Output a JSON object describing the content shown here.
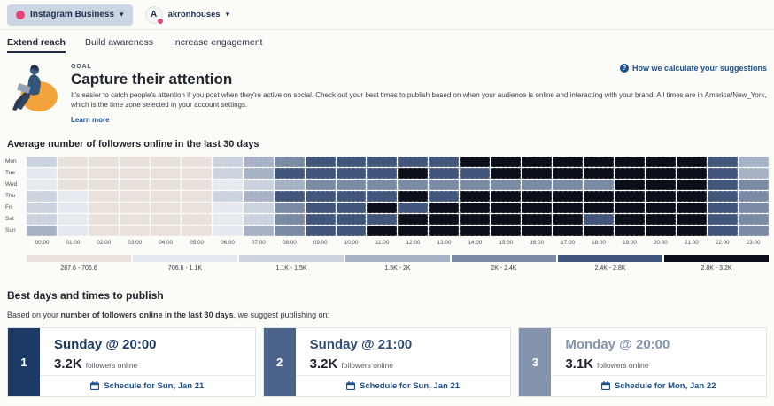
{
  "topbar": {
    "channel": {
      "label": "Instagram Business",
      "icon": "instagram-icon"
    },
    "account": {
      "name": "akronhouses",
      "avatar_letter": "A"
    }
  },
  "tabs": {
    "items": [
      {
        "label": "Extend reach",
        "active": true
      },
      {
        "label": "Build awareness",
        "active": false
      },
      {
        "label": "Increase engagement",
        "active": false
      }
    ]
  },
  "goal": {
    "eyebrow": "GOAL",
    "title": "Capture their attention",
    "description": "It's easier to catch people's attention if you post when they're active on social. Check out your best times to publish based on when your audience is online and interacting with your brand. All times are in America/New_York, which is the time zone selected in your account settings.",
    "learn_more_label": "Learn more",
    "help_link_label": "How we calculate your suggestions"
  },
  "chart_data": {
    "type": "heatmap",
    "title": "Average number of followers online in the last 30 days",
    "x_labels": [
      "00:00",
      "01:00",
      "02:00",
      "03:00",
      "04:00",
      "05:00",
      "06:00",
      "07:00",
      "08:00",
      "09:00",
      "10:00",
      "11:00",
      "12:00",
      "13:00",
      "14:00",
      "15:00",
      "16:00",
      "17:00",
      "18:00",
      "19:00",
      "20:00",
      "21:00",
      "22:00",
      "23:00"
    ],
    "y_labels": [
      "Mon",
      "Tue",
      "Wed",
      "Thu",
      "Fri",
      "Sat",
      "Sun"
    ],
    "legend_position": "bottom",
    "buckets": [
      {
        "label": "287.6 - 706.6",
        "color": "#e9e2dc"
      },
      {
        "label": "706.6 - 1.1K",
        "color": "#e6e9ef"
      },
      {
        "label": "1.1K - 1.5K",
        "color": "#cbd3df"
      },
      {
        "label": "1.5K - 2K",
        "color": "#a7b2c6"
      },
      {
        "label": "2K - 2.4K",
        "color": "#7c8ba5"
      },
      {
        "label": "2.4K - 2.8K",
        "color": "#42567b"
      },
      {
        "label": "2.8K - 3.2K",
        "color": "#0b0f19"
      }
    ],
    "rows_bucket_index": [
      [
        3,
        1,
        1,
        1,
        1,
        1,
        3,
        4,
        5,
        6,
        6,
        6,
        6,
        6,
        7,
        7,
        7,
        7,
        7,
        7,
        7,
        7,
        6,
        4
      ],
      [
        2,
        1,
        1,
        1,
        1,
        1,
        3,
        4,
        6,
        6,
        6,
        6,
        7,
        6,
        6,
        7,
        7,
        7,
        7,
        7,
        7,
        7,
        6,
        4
      ],
      [
        2,
        1,
        1,
        1,
        1,
        1,
        2,
        3,
        4,
        5,
        5,
        5,
        5,
        5,
        5,
        5,
        5,
        5,
        5,
        7,
        7,
        7,
        6,
        5
      ],
      [
        3,
        2,
        1,
        1,
        1,
        1,
        3,
        4,
        6,
        6,
        6,
        6,
        7,
        6,
        7,
        7,
        7,
        7,
        7,
        7,
        7,
        7,
        6,
        5
      ],
      [
        3,
        2,
        1,
        1,
        1,
        1,
        2,
        3,
        5,
        6,
        6,
        7,
        6,
        7,
        7,
        7,
        7,
        7,
        7,
        7,
        7,
        7,
        6,
        5
      ],
      [
        3,
        2,
        1,
        1,
        1,
        1,
        2,
        3,
        5,
        6,
        6,
        6,
        7,
        7,
        7,
        7,
        7,
        7,
        6,
        7,
        7,
        7,
        6,
        5
      ],
      [
        4,
        2,
        1,
        1,
        1,
        1,
        2,
        4,
        5,
        6,
        6,
        7,
        7,
        7,
        7,
        7,
        7,
        7,
        7,
        7,
        7,
        7,
        6,
        5
      ]
    ]
  },
  "suggestions": {
    "heading": "Best days and times to publish",
    "intro_prefix": "Based on your ",
    "intro_bold": "number of followers online in the last 30 days",
    "intro_suffix": ", we suggest publishing on:",
    "cards": [
      {
        "rank": "1",
        "title": "Sunday @ 20:00",
        "value": "3.2K",
        "value_suffix": "followers online",
        "cta": "Schedule for Sun, Jan 21",
        "accent": "#1c3a63",
        "title_color": "#1c3a63"
      },
      {
        "rank": "2",
        "title": "Sunday @ 21:00",
        "value": "3.2K",
        "value_suffix": "followers online",
        "cta": "Schedule for Sun, Jan 21",
        "accent": "#4c6389",
        "title_color": "#2f4d78"
      },
      {
        "rank": "3",
        "title": "Monday @ 20:00",
        "value": "3.1K",
        "value_suffix": "followers online",
        "cta": "Schedule for Mon, Jan 22",
        "accent": "#8493ae",
        "title_color": "#8493ae"
      }
    ],
    "link_color": "#1d4f91"
  }
}
